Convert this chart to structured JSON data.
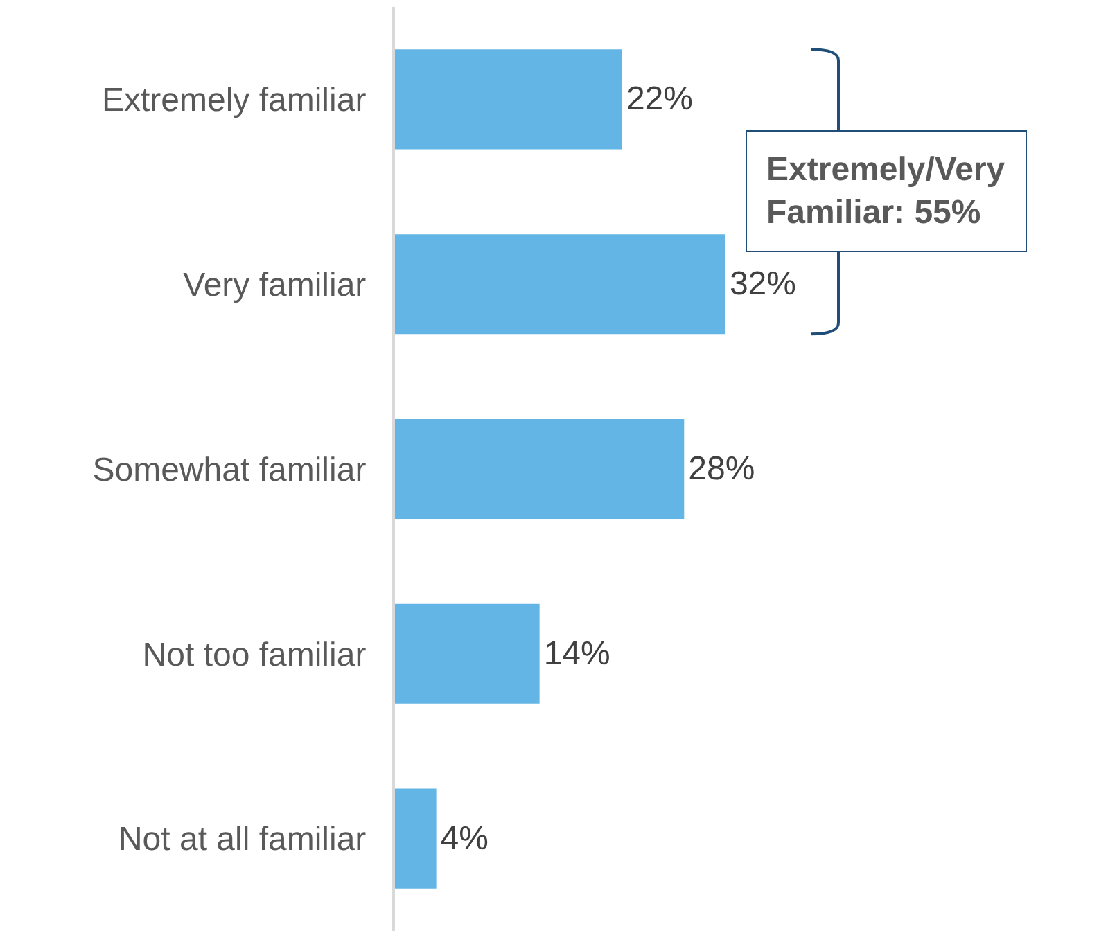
{
  "chart_data": {
    "type": "bar",
    "orientation": "horizontal",
    "categories": [
      "Extremely familiar",
      "Very familiar",
      "Somewhat familiar",
      "Not too familiar",
      "Not at all familiar"
    ],
    "values": [
      22,
      32,
      28,
      14,
      4
    ],
    "value_labels": [
      "22%",
      "32%",
      "28%",
      "14%",
      "4%"
    ],
    "color": "#63b5e5",
    "tick_labels": "y",
    "annotations": [
      "Extremely/Very\nFamiliar: 55%"
    ]
  }
}
